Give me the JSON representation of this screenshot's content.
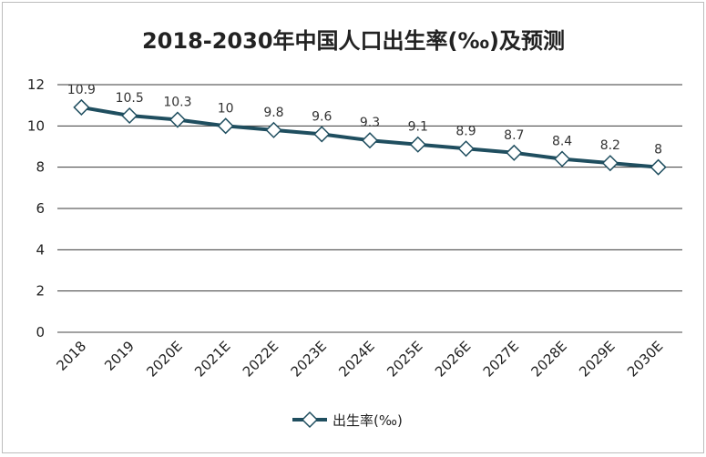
{
  "chart_data": {
    "type": "line",
    "title": "2018-2030年中国人口出生率(‰)及预测",
    "categories": [
      "2018",
      "2019",
      "2020E",
      "2021E",
      "2022E",
      "2023E",
      "2024E",
      "2025E",
      "2026E",
      "2027E",
      "2028E",
      "2029E",
      "2030E"
    ],
    "series": [
      {
        "name": "出生率(‰)",
        "values": [
          10.9,
          10.5,
          10.3,
          10,
          9.8,
          9.6,
          9.3,
          9.1,
          8.9,
          8.7,
          8.4,
          8.2,
          8
        ],
        "data_labels": [
          "10.9",
          "10.5",
          "10.3",
          "10",
          "9.8",
          "9.6",
          "9.3",
          "9.1",
          "8.9",
          "8.7",
          "8.4",
          "8.2",
          "8"
        ],
        "color": "#1f4e5f",
        "marker": "diamond"
      }
    ],
    "yticks": [
      "0",
      "2",
      "4",
      "6",
      "8",
      "10",
      "12"
    ],
    "ylim": [
      0,
      12
    ],
    "grid": true,
    "legend": "bottom"
  }
}
